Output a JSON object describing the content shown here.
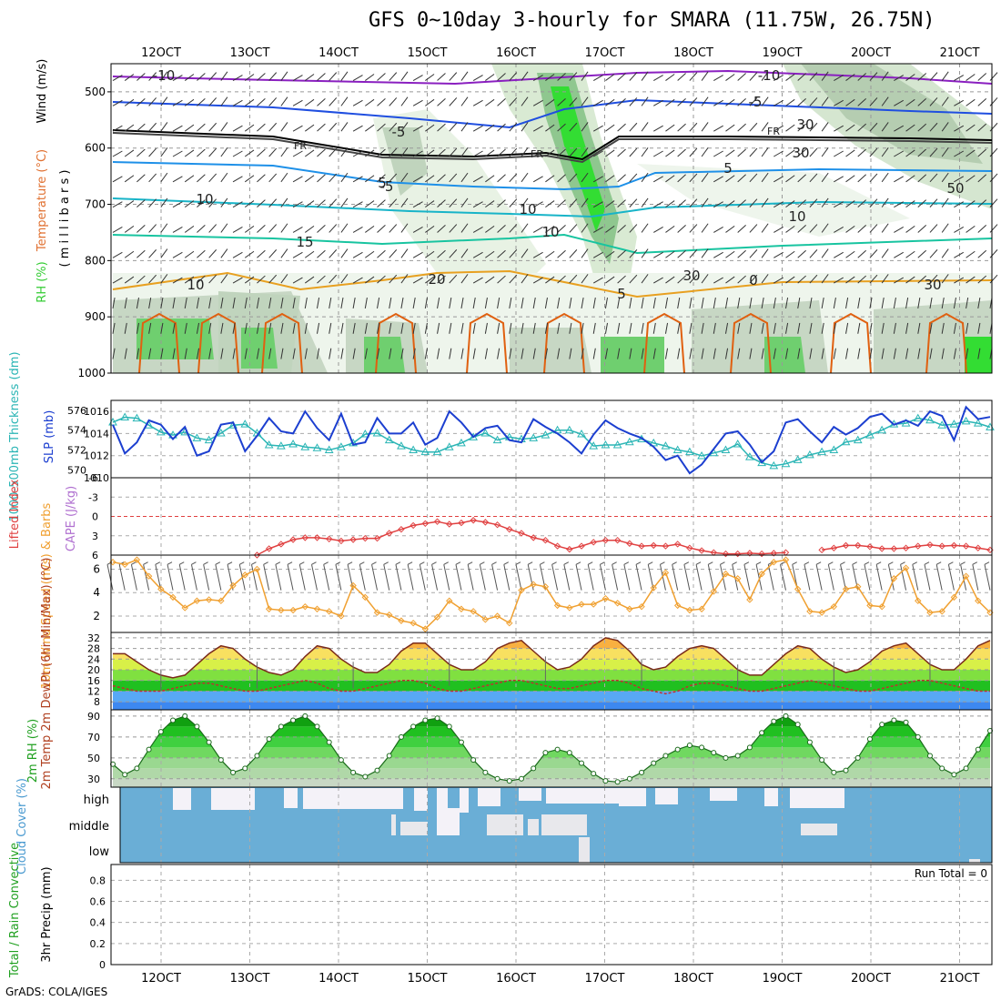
{
  "title": "GFS 0~10day 3-hourly for SMARA (11.75W, 26.75N)",
  "credit": "GrADS: COLA/IGES",
  "x_axis": {
    "ticks": [
      "12OCT",
      "13OCT",
      "14OCT",
      "15OCT",
      "16OCT",
      "17OCT",
      "18OCT",
      "19OCT",
      "20OCT",
      "21OCT"
    ]
  },
  "colors": {
    "rh_green": "#33cc33",
    "temp_purple": "#8000c0",
    "slp_blue": "#1c3fd0",
    "thickness_cyan": "#2ab5b5",
    "lifted_red": "#e04040",
    "wind_orange": "#f0a030",
    "cloud_blue": "#6aaed6"
  },
  "chart_data": [
    {
      "type": "heatmap",
      "panel": "upper-air",
      "ylabel_parts": [
        "RH (%)",
        "Temperature (°C)",
        "Wind (m/s)"
      ],
      "ylabel_unit": "( m i l l i b a r s )",
      "y_ticks": [
        "500",
        "600",
        "700",
        "800",
        "900",
        "1000"
      ],
      "contour_labels": [
        "-10",
        "-10",
        "-5",
        "-5",
        "-5",
        "FR",
        "FR",
        "FR",
        "5",
        "5",
        "10",
        "10",
        "15",
        "5",
        "20",
        "0",
        "10",
        "10",
        "30",
        "30",
        "50",
        "10",
        "30",
        "30"
      ],
      "ylim": [
        450,
        1000
      ]
    },
    {
      "type": "line",
      "panel": "slp-thickness",
      "ylabel_left": "1000-500mb Thickness (dm)",
      "ylabel_right": "SLP (mb)",
      "y_ticks_left": [
        "570",
        "572",
        "574",
        "576"
      ],
      "y_ticks_right": [
        "1010",
        "1012",
        "1014",
        "1016"
      ],
      "series": [
        {
          "name": "SLP (mb)",
          "values": [
            1014.8,
            1012.2,
            1013.2,
            1015.2,
            1014.8,
            1013.5,
            1014.6,
            1012.0,
            1012.4,
            1014.8,
            1015.0,
            1012.4,
            1013.8,
            1015.4,
            1014.2,
            1014.0,
            1016.0,
            1014.5,
            1013.4,
            1015.8,
            1013.0,
            1013.2,
            1015.4,
            1014.0,
            1014.0,
            1015.0,
            1013.0,
            1013.6,
            1016.0,
            1015.0,
            1013.7,
            1014.5,
            1014.7,
            1013.4,
            1013.2,
            1015.3,
            1014.6,
            1014.0,
            1013.2,
            1012.2,
            1013.9,
            1015.2,
            1014.5,
            1014.0,
            1013.6,
            1012.8,
            1011.6,
            1012.0,
            1010.4,
            1011.2,
            1012.6,
            1014.0,
            1014.2,
            1013.0,
            1011.4,
            1012.4,
            1015.0,
            1015.3,
            1014.2,
            1013.2,
            1014.6,
            1013.9,
            1014.5,
            1015.5,
            1015.8,
            1014.8,
            1015.2,
            1014.7,
            1016.0,
            1015.6,
            1013.4,
            1016.4,
            1015.3,
            1015.5
          ]
        },
        {
          "name": "Thickness (dm)",
          "values": [
            574.8,
            575.3,
            575.2,
            574.5,
            573.8,
            573.5,
            573.8,
            573.2,
            573.0,
            573.7,
            574.5,
            574.6,
            573.7,
            572.5,
            572.4,
            572.6,
            572.3,
            572.2,
            572.0,
            572.3,
            572.7,
            573.6,
            573.7,
            573.0,
            572.4,
            572.0,
            571.8,
            571.8,
            572.3,
            572.7,
            573.3,
            573.7,
            573.0,
            573.3,
            573.1,
            573.2,
            573.5,
            574.0,
            574.0,
            573.6,
            572.4,
            572.5,
            572.5,
            572.8,
            573.1,
            572.7,
            572.4,
            572.0,
            571.8,
            571.4,
            571.7,
            572.0,
            572.6,
            571.3,
            570.7,
            570.4,
            570.6,
            571.0,
            571.5,
            571.8,
            572.0,
            572.8,
            573.0,
            573.5,
            574.0,
            574.6,
            574.7,
            575.2,
            575.0,
            574.5,
            574.6,
            574.9,
            574.7,
            574.3
          ]
        }
      ]
    },
    {
      "type": "line",
      "panel": "stability",
      "ylabel_left": "Lifted Index",
      "ylabel_right": "CAPE (J/kg)",
      "y_ticks": [
        "-6",
        "-3",
        "0",
        "3",
        "6"
      ],
      "ylim": [
        -6,
        6
      ],
      "series": [
        {
          "name": "Lifted Index",
          "values": [
            null,
            null,
            null,
            null,
            null,
            null,
            null,
            null,
            null,
            null,
            null,
            null,
            6.0,
            5.0,
            4.3,
            3.6,
            3.3,
            3.3,
            3.5,
            3.8,
            3.6,
            3.4,
            3.4,
            2.6,
            2.0,
            1.4,
            1.1,
            0.8,
            1.2,
            1.0,
            0.6,
            0.9,
            1.3,
            2.0,
            2.6,
            3.3,
            3.7,
            4.6,
            5.1,
            4.6,
            4.0,
            3.7,
            3.7,
            4.2,
            4.6,
            4.5,
            4.6,
            4.3,
            4.9,
            5.3,
            5.6,
            5.8,
            5.8,
            5.7,
            5.8,
            5.7,
            5.6,
            null,
            null,
            5.2,
            4.9,
            4.5,
            4.5,
            4.7,
            5.0,
            5.0,
            4.9,
            4.6,
            4.4,
            4.6,
            4.5,
            4.6,
            4.9,
            5.2
          ]
        }
      ]
    },
    {
      "type": "line",
      "panel": "10m-wind",
      "ylabel": "10m Wind Speed (m/s) & Barbs",
      "y_ticks": [
        "2",
        "4",
        "6"
      ],
      "series": [
        {
          "name": "Speed (m/s)",
          "values": [
            6.6,
            6.4,
            6.8,
            5.4,
            4.3,
            3.6,
            2.7,
            3.3,
            3.4,
            3.3,
            4.6,
            5.5,
            6.0,
            2.6,
            2.5,
            2.5,
            2.8,
            2.6,
            2.4,
            2.0,
            4.6,
            3.6,
            2.3,
            2.1,
            1.6,
            1.4,
            0.9,
            1.9,
            3.3,
            2.6,
            2.4,
            1.7,
            2.0,
            1.4,
            4.2,
            4.7,
            4.5,
            2.9,
            2.7,
            3.0,
            3.0,
            3.5,
            3.1,
            2.6,
            2.8,
            4.4,
            5.7,
            2.9,
            2.5,
            2.6,
            4.1,
            5.6,
            5.2,
            3.4,
            5.6,
            6.6,
            6.8,
            4.3,
            2.4,
            2.3,
            2.8,
            4.3,
            4.5,
            2.9,
            2.8,
            5.2,
            6.1,
            3.3,
            2.3,
            2.4,
            3.6,
            5.4,
            3.3,
            2.3
          ]
        }
      ]
    },
    {
      "type": "area",
      "panel": "2m-temp",
      "ylabel": "2m Temp 2m DewPt (6hr Min/Max) (°C)",
      "y_ticks": [
        "8",
        "12",
        "16",
        "20",
        "24",
        "28",
        "32"
      ],
      "ylim": [
        5,
        34
      ],
      "series": [
        {
          "name": "2m Temp",
          "values": [
            26,
            26,
            23,
            20,
            18,
            17,
            18,
            22,
            26,
            29,
            28,
            24,
            21,
            19,
            18,
            20,
            25,
            29,
            28,
            24,
            21,
            19,
            19,
            22,
            27,
            30,
            30,
            26,
            22,
            20,
            20,
            23,
            28,
            30,
            31,
            27,
            23,
            20,
            21,
            24,
            29,
            32,
            31,
            27,
            22,
            20,
            21,
            25,
            28,
            29,
            28,
            24,
            20,
            18,
            18,
            22,
            26,
            29,
            28,
            24,
            21,
            19,
            20,
            23,
            27,
            29,
            30,
            26,
            22,
            20,
            20,
            24,
            29,
            31
          ]
        },
        {
          "name": "2m DewPt",
          "values": [
            14,
            13,
            12,
            12,
            12,
            13,
            14,
            15,
            15,
            14,
            13,
            12,
            12,
            13,
            14,
            15,
            16,
            15,
            13,
            12,
            12,
            13,
            14,
            15,
            16,
            16,
            15,
            13,
            12,
            12,
            13,
            14,
            15,
            16,
            16,
            15,
            14,
            13,
            13,
            14,
            15,
            16,
            16,
            15,
            13,
            12,
            11,
            12,
            14,
            15,
            15,
            14,
            13,
            12,
            12,
            13,
            14,
            15,
            16,
            15,
            14,
            13,
            12,
            12,
            13,
            14,
            15,
            16,
            16,
            15,
            14,
            13,
            12,
            12
          ]
        }
      ]
    },
    {
      "type": "area",
      "panel": "2m-rh",
      "ylabel": "2m RH (%)",
      "y_ticks": [
        "30",
        "50",
        "70",
        "90"
      ],
      "ylim": [
        22,
        96
      ],
      "values": [
        44,
        34,
        40,
        58,
        75,
        86,
        90,
        80,
        65,
        48,
        36,
        40,
        52,
        68,
        80,
        86,
        90,
        80,
        65,
        48,
        36,
        32,
        38,
        52,
        70,
        80,
        86,
        88,
        80,
        65,
        48,
        36,
        30,
        28,
        30,
        40,
        55,
        58,
        55,
        45,
        35,
        28,
        27,
        30,
        36,
        45,
        52,
        58,
        62,
        60,
        55,
        50,
        52,
        60,
        74,
        85,
        90,
        82,
        65,
        48,
        36,
        38,
        50,
        68,
        82,
        86,
        84,
        70,
        52,
        40,
        34,
        40,
        58,
        76
      ]
    },
    {
      "type": "heatmap",
      "panel": "cloud-cover",
      "ylabel": "Cloud Cover (%)",
      "levels": [
        "high",
        "middle",
        "low"
      ]
    },
    {
      "type": "bar",
      "panel": "precip",
      "ylabel_left": "Total / Rain Convective",
      "ylabel": "3hr Precip (mm)",
      "y_ticks": [
        "0",
        "0.2",
        "0.4",
        "0.6",
        "0.8"
      ],
      "ylim": [
        0,
        0.95
      ],
      "run_total": "Run Total = 0",
      "values": []
    }
  ]
}
